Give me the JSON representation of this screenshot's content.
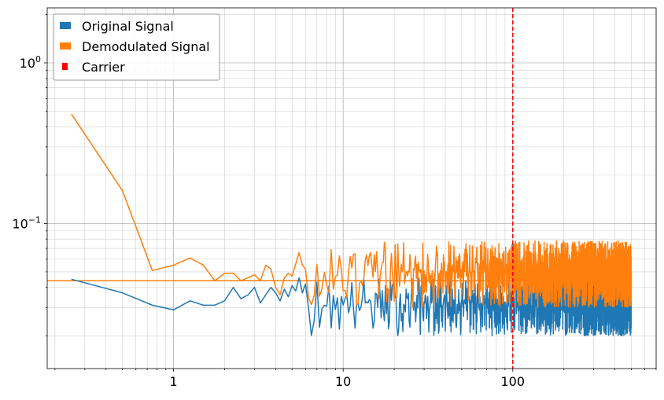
{
  "chart_data": {
    "type": "line",
    "title": "",
    "xlabel": "",
    "ylabel": "",
    "xscale": "log",
    "yscale": "log",
    "xlim": [
      0.18,
      700
    ],
    "ylim": [
      0.0125,
      2.2
    ],
    "grid": "major and minor",
    "legend_position": "top-left",
    "x_ticks": [
      {
        "value": 1,
        "label": "1"
      },
      {
        "value": 10,
        "label": "10"
      },
      {
        "value": 100,
        "label": "100"
      }
    ],
    "y_ticks": [
      {
        "value": 0.1,
        "base": "10",
        "exp": "−1"
      },
      {
        "value": 1,
        "base": "10",
        "exp": "0"
      }
    ],
    "series": [
      {
        "name": "Original Signal",
        "color": "#1f77b4",
        "low_freq_points": [
          [
            0.25,
            0.045
          ],
          [
            0.5,
            0.037
          ],
          [
            0.75,
            0.031
          ],
          [
            1.0,
            0.029
          ],
          [
            1.25,
            0.033
          ],
          [
            1.5,
            0.031
          ],
          [
            1.75,
            0.031
          ],
          [
            2.0,
            0.033
          ],
          [
            2.25,
            0.04
          ],
          [
            2.5,
            0.034
          ],
          [
            2.75,
            0.036
          ],
          [
            3.0,
            0.04
          ],
          [
            3.25,
            0.032
          ],
          [
            3.5,
            0.036
          ],
          [
            3.75,
            0.04
          ],
          [
            4.0,
            0.037
          ],
          [
            4.25,
            0.033
          ],
          [
            4.5,
            0.039
          ],
          [
            4.75,
            0.035
          ],
          [
            5.0,
            0.041
          ],
          [
            5.25,
            0.038
          ],
          [
            5.5,
            0.046
          ],
          [
            5.75,
            0.037
          ],
          [
            6.0,
            0.042
          ]
        ],
        "noise_band": {
          "x_start": 6,
          "x_end": 500,
          "median": 0.032,
          "min": 0.02,
          "max": 0.046
        },
        "peak": {
          "x": 100,
          "y": 0.075
        }
      },
      {
        "name": "Demodulated Signal",
        "color": "#ff7f0e",
        "low_freq_points": [
          [
            0.25,
            0.48
          ],
          [
            0.5,
            0.16
          ],
          [
            0.75,
            0.051
          ],
          [
            1.0,
            0.055
          ],
          [
            1.25,
            0.061
          ],
          [
            1.5,
            0.055
          ],
          [
            1.75,
            0.044
          ],
          [
            2.0,
            0.049
          ],
          [
            2.25,
            0.049
          ],
          [
            2.5,
            0.044
          ],
          [
            2.75,
            0.046
          ],
          [
            3.0,
            0.048
          ],
          [
            3.25,
            0.044
          ],
          [
            3.5,
            0.055
          ],
          [
            3.75,
            0.052
          ],
          [
            4.0,
            0.04
          ],
          [
            4.25,
            0.036
          ],
          [
            4.5,
            0.046
          ],
          [
            4.75,
            0.049
          ],
          [
            5.0,
            0.047
          ],
          [
            5.25,
            0.056
          ],
          [
            5.5,
            0.066
          ],
          [
            5.75,
            0.055
          ],
          [
            6.0,
            0.052
          ]
        ],
        "noise_band": {
          "x_start": 6,
          "x_end": 500,
          "median": 0.05,
          "min": 0.03,
          "max": 0.078
        },
        "baseline": {
          "x": [
            0.1,
            500
          ],
          "y": 0.044
        }
      }
    ],
    "carrier": {
      "name": "Carrier",
      "x": 100,
      "color": "#ff0000",
      "style": "dashed"
    }
  }
}
